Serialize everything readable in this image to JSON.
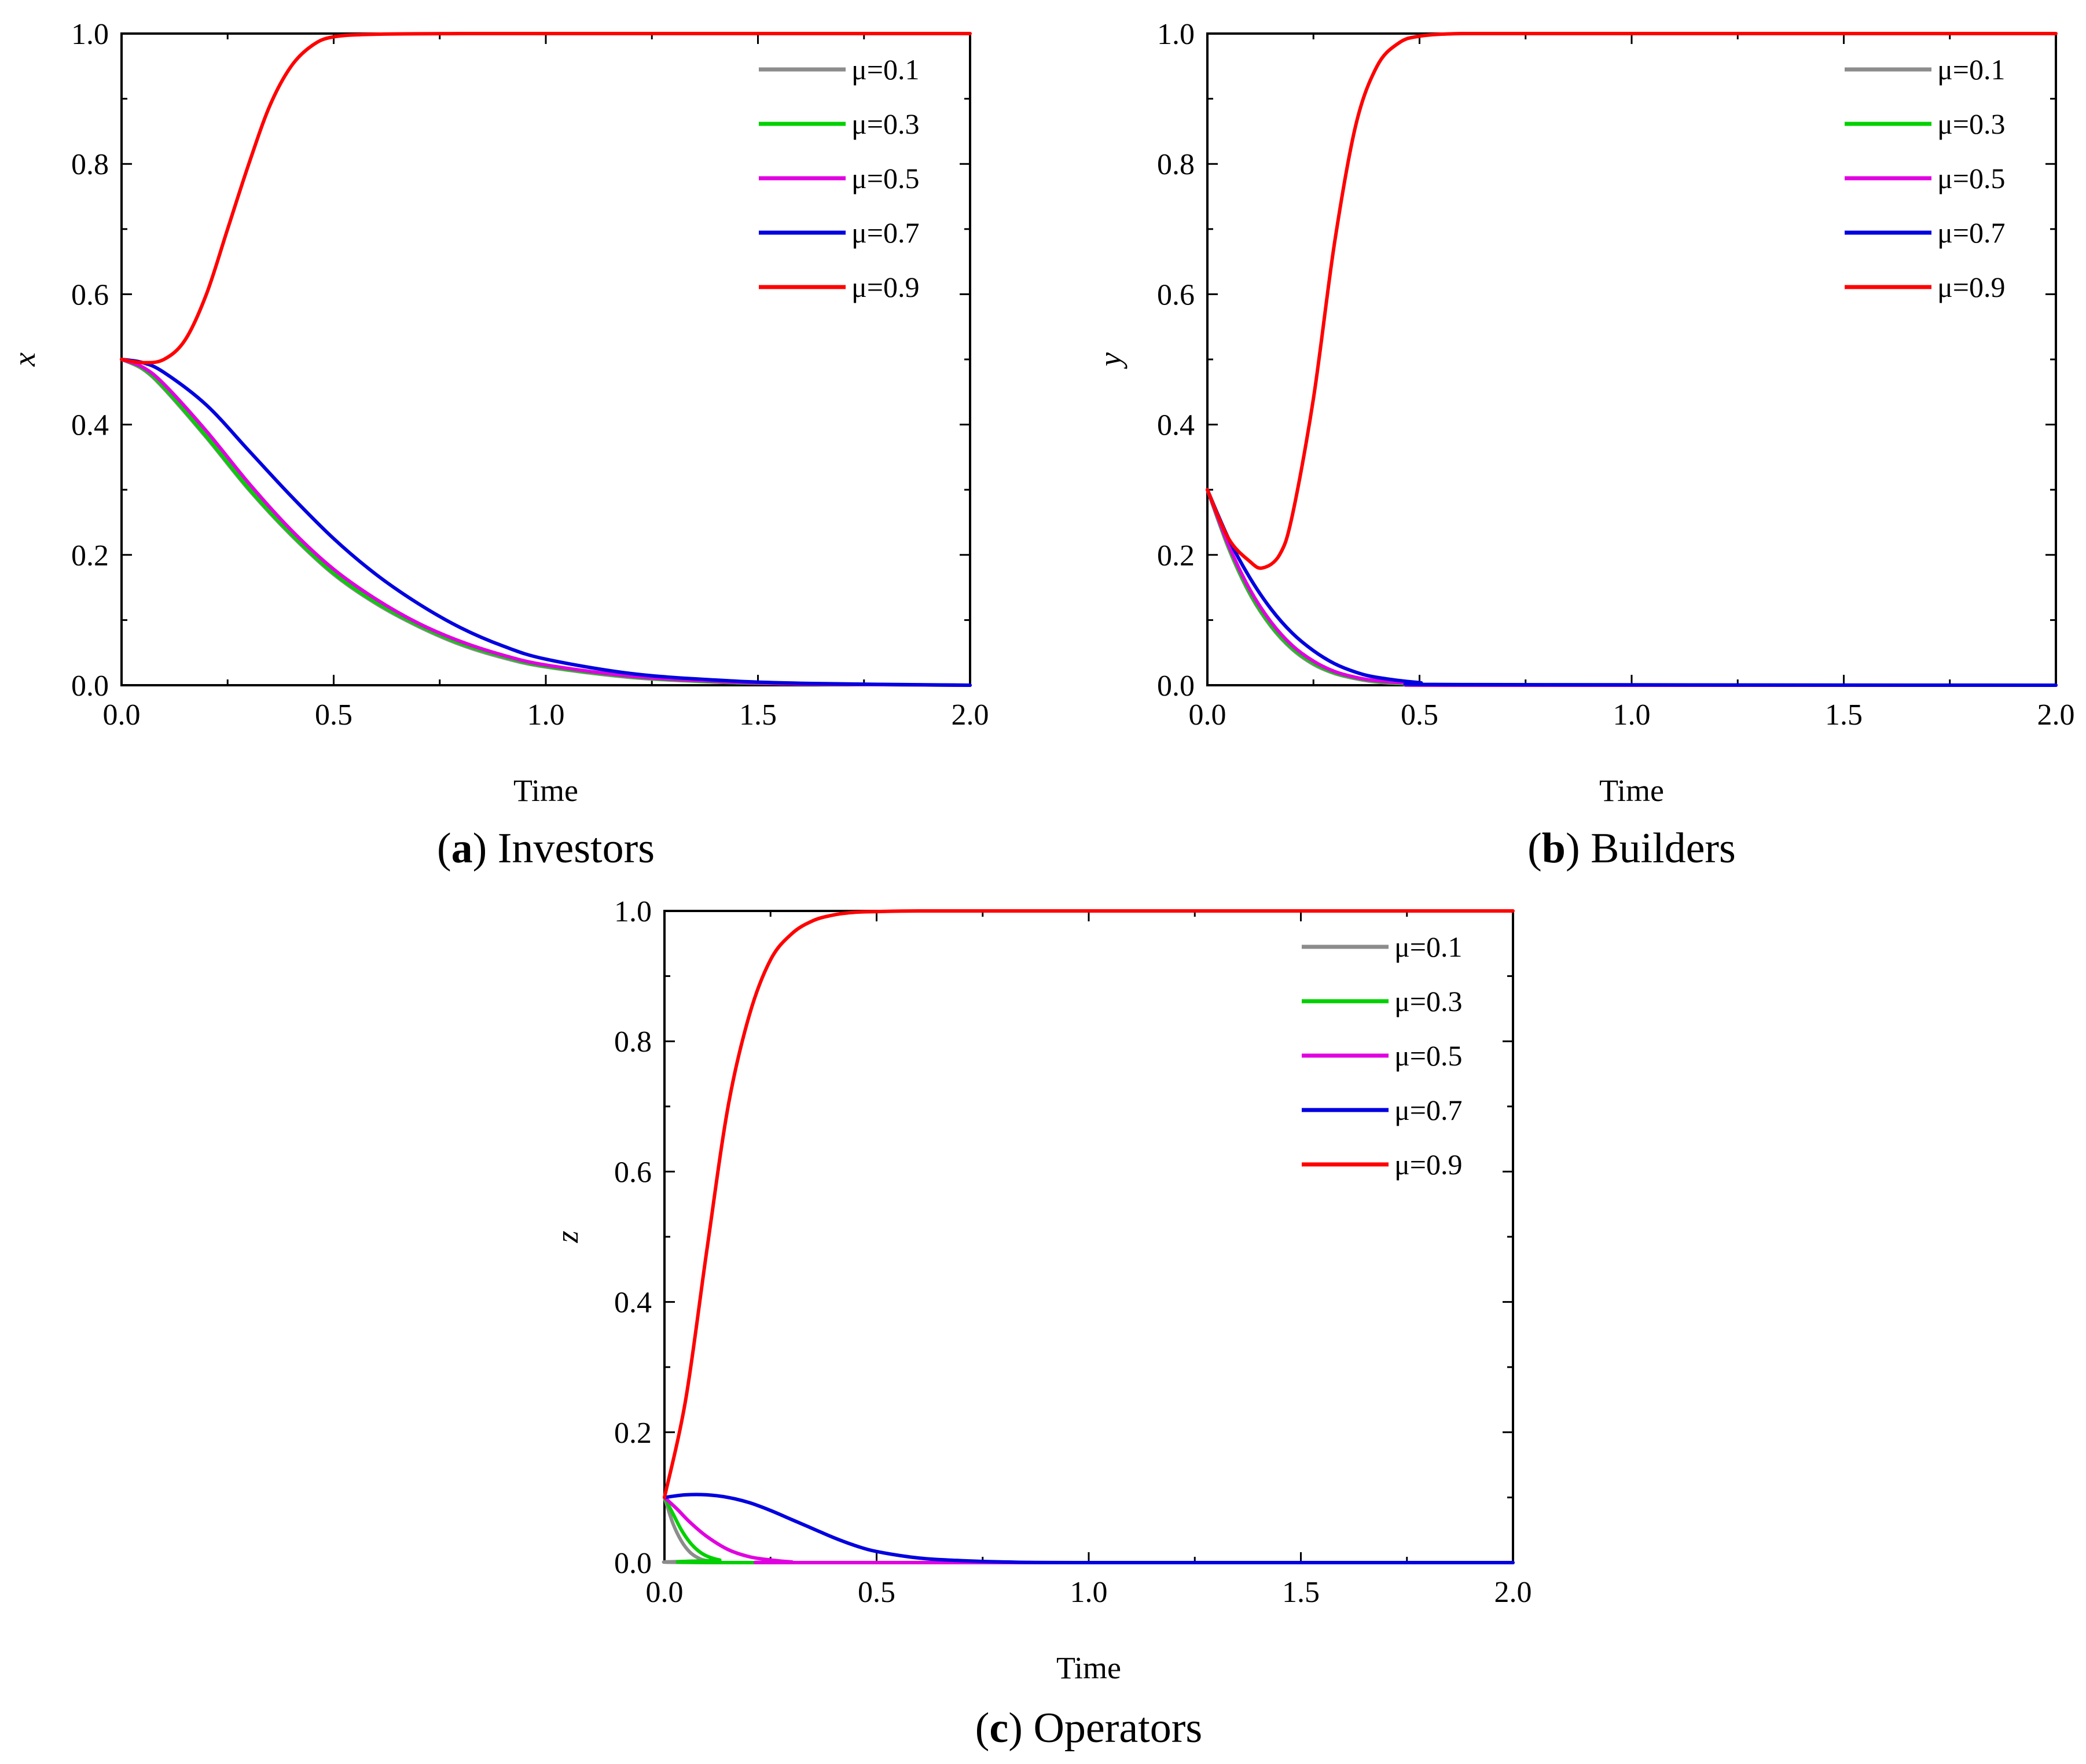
{
  "chart_data": [
    {
      "type": "line",
      "caption_letter": "a",
      "caption_text": "Investors",
      "xlabel": "Time",
      "ylabel": "x",
      "xlim": [
        0,
        2
      ],
      "ylim": [
        0,
        1
      ],
      "x_ticks": [
        "0.0",
        "0.5",
        "1.0",
        "1.5",
        "2.0"
      ],
      "y_ticks": [
        "0.0",
        "0.2",
        "0.4",
        "0.6",
        "0.8",
        "1.0"
      ],
      "legend_position": "top-right",
      "grid": false,
      "series": [
        {
          "name": "μ=0.1",
          "color": "#8c8c8c",
          "x": [
            0,
            0.05,
            0.1,
            0.2,
            0.3,
            0.4,
            0.5,
            0.6,
            0.7,
            0.8,
            0.9,
            1.0,
            1.2,
            1.4,
            1.6,
            2.0
          ],
          "y": [
            0.5,
            0.485,
            0.455,
            0.38,
            0.3,
            0.23,
            0.17,
            0.125,
            0.09,
            0.062,
            0.042,
            0.028,
            0.012,
            0.005,
            0.002,
            0.0
          ]
        },
        {
          "name": "μ=0.3",
          "color": "#00d000",
          "x": [
            0,
            0.05,
            0.1,
            0.2,
            0.3,
            0.4,
            0.5,
            0.6,
            0.7,
            0.8,
            0.9,
            1.0,
            1.2,
            1.4,
            1.6,
            2.0
          ],
          "y": [
            0.5,
            0.486,
            0.457,
            0.382,
            0.302,
            0.232,
            0.172,
            0.127,
            0.092,
            0.064,
            0.044,
            0.029,
            0.013,
            0.005,
            0.002,
            0.0
          ]
        },
        {
          "name": "μ=0.5",
          "color": "#e000e0",
          "x": [
            0,
            0.05,
            0.1,
            0.2,
            0.3,
            0.4,
            0.5,
            0.6,
            0.7,
            0.8,
            0.9,
            1.0,
            1.2,
            1.4,
            1.6,
            2.0
          ],
          "y": [
            0.5,
            0.488,
            0.462,
            0.39,
            0.31,
            0.238,
            0.178,
            0.132,
            0.095,
            0.067,
            0.046,
            0.031,
            0.014,
            0.006,
            0.002,
            0.0
          ]
        },
        {
          "name": "μ=0.7",
          "color": "#0000e0",
          "x": [
            0,
            0.05,
            0.1,
            0.2,
            0.3,
            0.4,
            0.5,
            0.6,
            0.7,
            0.8,
            0.9,
            1.0,
            1.2,
            1.4,
            1.6,
            2.0
          ],
          "y": [
            0.5,
            0.495,
            0.48,
            0.43,
            0.36,
            0.29,
            0.225,
            0.17,
            0.125,
            0.088,
            0.06,
            0.04,
            0.018,
            0.008,
            0.003,
            0.0
          ]
        },
        {
          "name": "μ=0.9",
          "color": "#ff0000",
          "x": [
            0,
            0.05,
            0.1,
            0.15,
            0.2,
            0.25,
            0.3,
            0.35,
            0.4,
            0.45,
            0.5,
            0.6,
            0.8,
            1.0,
            2.0
          ],
          "y": [
            0.5,
            0.495,
            0.5,
            0.53,
            0.6,
            0.7,
            0.8,
            0.89,
            0.95,
            0.982,
            0.995,
            0.999,
            1.0,
            1.0,
            1.0
          ]
        }
      ]
    },
    {
      "type": "line",
      "caption_letter": "b",
      "caption_text": "Builders",
      "xlabel": "Time",
      "ylabel": "y",
      "xlim": [
        0,
        2
      ],
      "ylim": [
        0,
        1
      ],
      "x_ticks": [
        "0.0",
        "0.5",
        "1.0",
        "1.5",
        "2.0"
      ],
      "y_ticks": [
        "0.0",
        "0.2",
        "0.4",
        "0.6",
        "0.8",
        "1.0"
      ],
      "legend_position": "top-right",
      "grid": false,
      "series": [
        {
          "name": "μ=0.1",
          "color": "#8c8c8c",
          "x": [
            0,
            0.05,
            0.1,
            0.15,
            0.2,
            0.25,
            0.3,
            0.35,
            0.4,
            0.5,
            0.6,
            2.0
          ],
          "y": [
            0.3,
            0.21,
            0.14,
            0.09,
            0.055,
            0.032,
            0.018,
            0.01,
            0.005,
            0.001,
            0.0,
            0.0
          ]
        },
        {
          "name": "μ=0.3",
          "color": "#00d000",
          "x": [
            0,
            0.05,
            0.1,
            0.15,
            0.2,
            0.25,
            0.3,
            0.35,
            0.4,
            0.5,
            0.6,
            2.0
          ],
          "y": [
            0.3,
            0.212,
            0.142,
            0.092,
            0.057,
            0.034,
            0.019,
            0.011,
            0.006,
            0.001,
            0.0,
            0.0
          ]
        },
        {
          "name": "μ=0.5",
          "color": "#e000e0",
          "x": [
            0,
            0.05,
            0.1,
            0.15,
            0.2,
            0.25,
            0.3,
            0.35,
            0.4,
            0.5,
            0.6,
            2.0
          ],
          "y": [
            0.3,
            0.215,
            0.147,
            0.097,
            0.061,
            0.037,
            0.021,
            0.012,
            0.007,
            0.002,
            0.0,
            0.0
          ]
        },
        {
          "name": "μ=0.7",
          "color": "#0000e0",
          "x": [
            0,
            0.05,
            0.1,
            0.15,
            0.2,
            0.25,
            0.3,
            0.35,
            0.4,
            0.5,
            0.6,
            2.0
          ],
          "y": [
            0.3,
            0.225,
            0.165,
            0.117,
            0.08,
            0.053,
            0.033,
            0.02,
            0.012,
            0.004,
            0.001,
            0.0
          ]
        },
        {
          "name": "μ=0.9",
          "color": "#ff0000",
          "x": [
            0,
            0.05,
            0.1,
            0.13,
            0.17,
            0.2,
            0.25,
            0.3,
            0.35,
            0.4,
            0.45,
            0.5,
            0.6,
            0.8,
            2.0
          ],
          "y": [
            0.3,
            0.225,
            0.19,
            0.18,
            0.2,
            0.26,
            0.44,
            0.68,
            0.86,
            0.95,
            0.985,
            0.996,
            1.0,
            1.0,
            1.0
          ]
        }
      ]
    },
    {
      "type": "line",
      "caption_letter": "c",
      "caption_text": "Operators",
      "xlabel": "Time",
      "ylabel": "z",
      "xlim": [
        0,
        2
      ],
      "ylim": [
        0,
        1
      ],
      "x_ticks": [
        "0.0",
        "0.5",
        "1.0",
        "1.5",
        "2.0"
      ],
      "y_ticks": [
        "0.0",
        "0.2",
        "0.4",
        "0.6",
        "0.8",
        "1.0"
      ],
      "legend_position": "top-right",
      "grid": false,
      "series": [
        {
          "name": "μ=0.1",
          "color": "#8c8c8c",
          "x": [
            0,
            0.02,
            0.04,
            0.06,
            0.08,
            0.1,
            0.15,
            2.0
          ],
          "y": [
            0.1,
            0.06,
            0.033,
            0.016,
            0.007,
            0.003,
            0.0,
            0.0
          ]
        },
        {
          "name": "μ=0.3",
          "color": "#00d000",
          "x": [
            0,
            0.02,
            0.04,
            0.06,
            0.08,
            0.1,
            0.13,
            0.18,
            2.0
          ],
          "y": [
            0.1,
            0.075,
            0.05,
            0.031,
            0.018,
            0.01,
            0.004,
            0.0,
            0.0
          ]
        },
        {
          "name": "μ=0.5",
          "color": "#e000e0",
          "x": [
            0,
            0.03,
            0.06,
            0.1,
            0.15,
            0.2,
            0.25,
            0.3,
            0.35,
            2.0
          ],
          "y": [
            0.1,
            0.082,
            0.062,
            0.04,
            0.02,
            0.009,
            0.004,
            0.001,
            0.0,
            0.0
          ]
        },
        {
          "name": "μ=0.7",
          "color": "#0000e0",
          "x": [
            0,
            0.05,
            0.1,
            0.15,
            0.2,
            0.25,
            0.3,
            0.35,
            0.4,
            0.45,
            0.5,
            0.6,
            0.7,
            0.8,
            1.0,
            2.0
          ],
          "y": [
            0.1,
            0.104,
            0.104,
            0.1,
            0.092,
            0.08,
            0.066,
            0.052,
            0.038,
            0.026,
            0.017,
            0.007,
            0.003,
            0.001,
            0.0,
            0.0
          ]
        },
        {
          "name": "μ=0.9",
          "color": "#ff0000",
          "x": [
            0,
            0.05,
            0.1,
            0.15,
            0.2,
            0.25,
            0.3,
            0.35,
            0.4,
            0.45,
            0.5,
            0.6,
            0.8,
            1.0,
            2.0
          ],
          "y": [
            0.1,
            0.25,
            0.48,
            0.7,
            0.84,
            0.925,
            0.965,
            0.985,
            0.994,
            0.998,
            0.999,
            1.0,
            1.0,
            1.0,
            1.0
          ]
        }
      ]
    }
  ]
}
